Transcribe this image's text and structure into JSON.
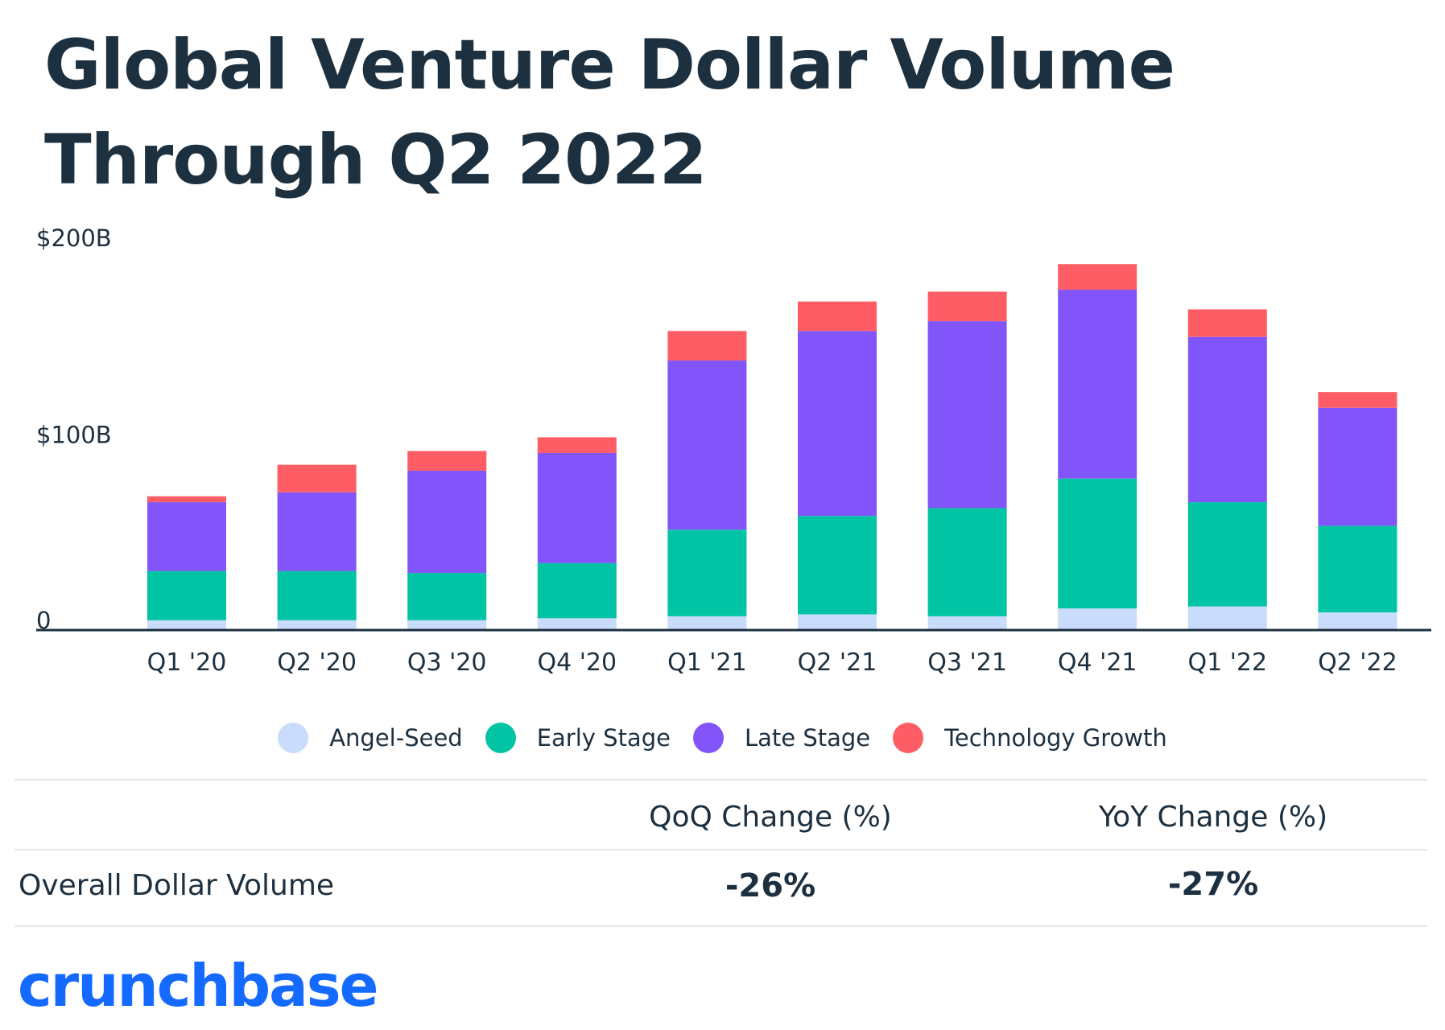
{
  "title": "Global Venture Dollar Volume Through Q2 2022",
  "chart_data": {
    "type": "bar",
    "stacked": true,
    "title": "Global Venture Dollar Volume Through Q2 2022",
    "xlabel": "",
    "ylabel": "",
    "ylim": [
      0,
      200
    ],
    "y_ticks": [
      {
        "value": 0,
        "label": "0"
      },
      {
        "value": 100,
        "label": "$100B"
      },
      {
        "value": 200,
        "label": "$200B"
      }
    ],
    "categories": [
      "Q1 '20",
      "Q2 '20",
      "Q3 '20",
      "Q4 '20",
      "Q1 '21",
      "Q2 '21",
      "Q3 '21",
      "Q4 '21",
      "Q1 '22",
      "Q2 '22"
    ],
    "series": [
      {
        "name": "Angel-Seed",
        "color": "#c9dcfb",
        "values": [
          5,
          5,
          5,
          6,
          7,
          8,
          7,
          11,
          12,
          9
        ]
      },
      {
        "name": "Early Stage",
        "color": "#00c4a3",
        "values": [
          25,
          25,
          24,
          28,
          44,
          50,
          55,
          66,
          53,
          44
        ]
      },
      {
        "name": "Late Stage",
        "color": "#8155fa",
        "values": [
          35,
          40,
          52,
          56,
          86,
          94,
          95,
          96,
          84,
          60
        ]
      },
      {
        "name": "Technology Growth",
        "color": "#ff5d66",
        "values": [
          3,
          14,
          10,
          8,
          15,
          15,
          15,
          13,
          14,
          8
        ]
      }
    ],
    "legend_position": "bottom-center",
    "grid": false
  },
  "table": {
    "headers": [
      "QoQ Change (%)",
      "YoY Change (%)"
    ],
    "row_label": "Overall Dollar Volume",
    "values": [
      "-26%",
      "-27%"
    ]
  },
  "logo_text": "crunchbase",
  "colors": {
    "text": "#1d3040",
    "axis": "#1d3040",
    "logo": "#146aff"
  }
}
